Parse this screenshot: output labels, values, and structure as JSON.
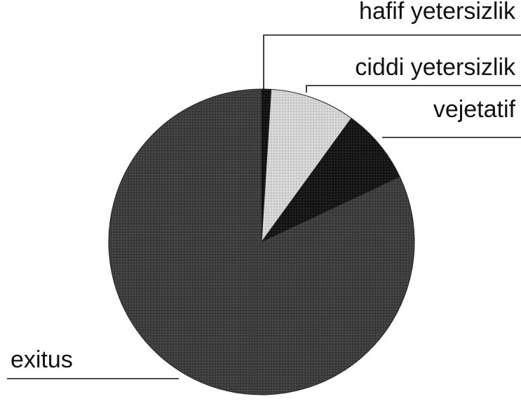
{
  "chart_data": {
    "type": "pie",
    "categories": [
      "hafif yetersizlik",
      "ciddi yetersizlik",
      "vejetatif",
      "exitus"
    ],
    "values": [
      1,
      9,
      8,
      82
    ],
    "colors": [
      "#111111",
      "#d6d6d6",
      "#141414",
      "#3c3c3c"
    ]
  }
}
